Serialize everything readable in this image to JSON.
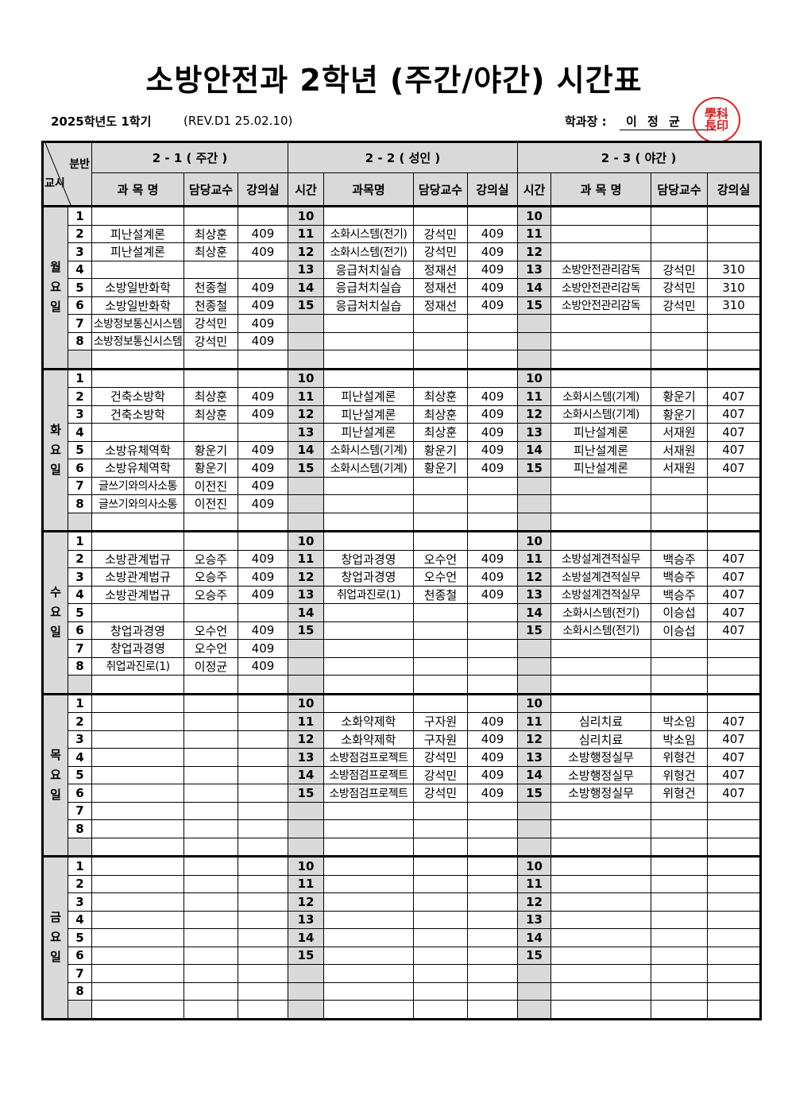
{
  "title": "소방안전과 2학년 (주간/야간) 시간표",
  "semester": "2025학년도 1학기",
  "revision": "(REV.D1  25.02.10)",
  "head_label": "학과장 :",
  "head_name": "이 정 균",
  "seal_text": "학과장인",
  "seal_color": "#e02020",
  "corner": {
    "top": "분반",
    "bottom": "교시"
  },
  "groups": [
    "2 - 1 ( 주간 )",
    "2 - 2 ( 성인  )",
    "2 - 3 ( 야간 )"
  ],
  "columns": [
    "과 목 명",
    "담당교수",
    "강의실",
    "시간",
    "과목명",
    "담당교수",
    "강의실",
    "시간",
    "과 목 명",
    "담당교수",
    "강의실"
  ],
  "days": [
    {
      "name": "월요일",
      "rows": [
        [
          "1",
          "",
          "",
          "",
          "10",
          "",
          "",
          "",
          "10",
          "",
          "",
          ""
        ],
        [
          "2",
          "피난설계론",
          "최상훈",
          "409",
          "11",
          "소화시스템(전기)",
          "강석민",
          "409",
          "11",
          "",
          "",
          ""
        ],
        [
          "3",
          "피난설계론",
          "최상훈",
          "409",
          "12",
          "소화시스템(전기)",
          "강석민",
          "409",
          "12",
          "",
          "",
          ""
        ],
        [
          "4",
          "",
          "",
          "",
          "13",
          "응급처치실습",
          "정재선",
          "409",
          "13",
          "소방안전관리감독",
          "강석민",
          "310"
        ],
        [
          "5",
          "소방일반화학",
          "천종철",
          "409",
          "14",
          "응급처치실습",
          "정재선",
          "409",
          "14",
          "소방안전관리감독",
          "강석민",
          "310"
        ],
        [
          "6",
          "소방일반화학",
          "천종철",
          "409",
          "15",
          "응급처치실습",
          "정재선",
          "409",
          "15",
          "소방안전관리감독",
          "강석민",
          "310"
        ],
        [
          "7",
          "소방정보통신시스템",
          "강석민",
          "409",
          "",
          "",
          "",
          "",
          "",
          "",
          "",
          ""
        ],
        [
          "8",
          "소방정보통신시스템",
          "강석민",
          "409",
          "",
          "",
          "",
          "",
          "",
          "",
          "",
          ""
        ],
        [
          "",
          "",
          "",
          "",
          "",
          "",
          "",
          "",
          "",
          "",
          "",
          ""
        ]
      ]
    },
    {
      "name": "화요일",
      "rows": [
        [
          "1",
          "",
          "",
          "",
          "10",
          "",
          "",
          "",
          "10",
          "",
          "",
          ""
        ],
        [
          "2",
          "건축소방학",
          "최상훈",
          "409",
          "11",
          "피난설계론",
          "최상훈",
          "409",
          "11",
          "소화시스템(기계)",
          "황운기",
          "407"
        ],
        [
          "3",
          "건축소방학",
          "최상훈",
          "409",
          "12",
          "피난설계론",
          "최상훈",
          "409",
          "12",
          "소화시스템(기계)",
          "황운기",
          "407"
        ],
        [
          "4",
          "",
          "",
          "",
          "13",
          "피난설계론",
          "최상훈",
          "409",
          "13",
          "피난설계론",
          "서재원",
          "407"
        ],
        [
          "5",
          "소방유체역학",
          "황운기",
          "409",
          "14",
          "소화시스템(기계)",
          "황운기",
          "409",
          "14",
          "피난설계론",
          "서재원",
          "407"
        ],
        [
          "6",
          "소방유체역학",
          "황운기",
          "409",
          "15",
          "소화시스템(기계)",
          "황운기",
          "409",
          "15",
          "피난설계론",
          "서재원",
          "407"
        ],
        [
          "7",
          "글쓰기와의사소통",
          "이전진",
          "409",
          "",
          "",
          "",
          "",
          "",
          "",
          "",
          ""
        ],
        [
          "8",
          "글쓰기와의사소통",
          "이전진",
          "409",
          "",
          "",
          "",
          "",
          "",
          "",
          "",
          ""
        ],
        [
          "",
          "",
          "",
          "",
          "",
          "",
          "",
          "",
          "",
          "",
          "",
          ""
        ]
      ]
    },
    {
      "name": "수요일",
      "rows": [
        [
          "1",
          "",
          "",
          "",
          "10",
          "",
          "",
          "",
          "10",
          "",
          "",
          ""
        ],
        [
          "2",
          "소방관계법규",
          "오승주",
          "409",
          "11",
          "창업과경영",
          "오수언",
          "409",
          "11",
          "소방설계견적실무",
          "백승주",
          "407"
        ],
        [
          "3",
          "소방관계법규",
          "오승주",
          "409",
          "12",
          "창업과경영",
          "오수언",
          "409",
          "12",
          "소방설계견적실무",
          "백승주",
          "407"
        ],
        [
          "4",
          "소방관계법규",
          "오승주",
          "409",
          "13",
          "취업과진로(1)",
          "천종철",
          "409",
          "13",
          "소방설계견적실무",
          "백승주",
          "407"
        ],
        [
          "5",
          "",
          "",
          "",
          "14",
          "",
          "",
          "",
          "14",
          "소화시스템(전기)",
          "이승섭",
          "407"
        ],
        [
          "6",
          "창업과경영",
          "오수언",
          "409",
          "15",
          "",
          "",
          "",
          "15",
          "소화시스템(전기)",
          "이승섭",
          "407"
        ],
        [
          "7",
          "창업과경영",
          "오수언",
          "409",
          "",
          "",
          "",
          "",
          "",
          "",
          "",
          ""
        ],
        [
          "8",
          "취업과진로(1)",
          "이정균",
          "409",
          "",
          "",
          "",
          "",
          "",
          "",
          "",
          ""
        ],
        [
          "",
          "",
          "",
          "",
          "",
          "",
          "",
          "",
          "",
          "",
          "",
          ""
        ]
      ]
    },
    {
      "name": "목요일",
      "rows": [
        [
          "1",
          "",
          "",
          "",
          "10",
          "",
          "",
          "",
          "10",
          "",
          "",
          ""
        ],
        [
          "2",
          "",
          "",
          "",
          "11",
          "소화약제학",
          "구자원",
          "409",
          "11",
          "심리치료",
          "박소임",
          "407"
        ],
        [
          "3",
          "",
          "",
          "",
          "12",
          "소화약제학",
          "구자원",
          "409",
          "12",
          "심리치료",
          "박소임",
          "407"
        ],
        [
          "4",
          "",
          "",
          "",
          "13",
          "소방점검프로젝트",
          "강석민",
          "409",
          "13",
          "소방행정실무",
          "위형건",
          "407"
        ],
        [
          "5",
          "",
          "",
          "",
          "14",
          "소방점검프로젝트",
          "강석민",
          "409",
          "14",
          "소방행정실무",
          "위형건",
          "407"
        ],
        [
          "6",
          "",
          "",
          "",
          "15",
          "소방점검프로젝트",
          "강석민",
          "409",
          "15",
          "소방행정실무",
          "위형건",
          "407"
        ],
        [
          "7",
          "",
          "",
          "",
          "",
          "",
          "",
          "",
          "",
          "",
          "",
          ""
        ],
        [
          "8",
          "",
          "",
          "",
          "",
          "",
          "",
          "",
          "",
          "",
          "",
          ""
        ],
        [
          "",
          "",
          "",
          "",
          "",
          "",
          "",
          "",
          "",
          "",
          "",
          ""
        ]
      ]
    },
    {
      "name": "금요일",
      "rows": [
        [
          "1",
          "",
          "",
          "",
          "10",
          "",
          "",
          "",
          "10",
          "",
          "",
          ""
        ],
        [
          "2",
          "",
          "",
          "",
          "11",
          "",
          "",
          "",
          "11",
          "",
          "",
          ""
        ],
        [
          "3",
          "",
          "",
          "",
          "12",
          "",
          "",
          "",
          "12",
          "",
          "",
          ""
        ],
        [
          "4",
          "",
          "",
          "",
          "13",
          "",
          "",
          "",
          "13",
          "",
          "",
          ""
        ],
        [
          "5",
          "",
          "",
          "",
          "14",
          "",
          "",
          "",
          "14",
          "",
          "",
          ""
        ],
        [
          "6",
          "",
          "",
          "",
          "15",
          "",
          "",
          "",
          "15",
          "",
          "",
          ""
        ],
        [
          "7",
          "",
          "",
          "",
          "",
          "",
          "",
          "",
          "",
          "",
          "",
          ""
        ],
        [
          "8",
          "",
          "",
          "",
          "",
          "",
          "",
          "",
          "",
          "",
          "",
          ""
        ],
        [
          "",
          "",
          "",
          "",
          "",
          "",
          "",
          "",
          "",
          "",
          "",
          ""
        ]
      ]
    }
  ]
}
